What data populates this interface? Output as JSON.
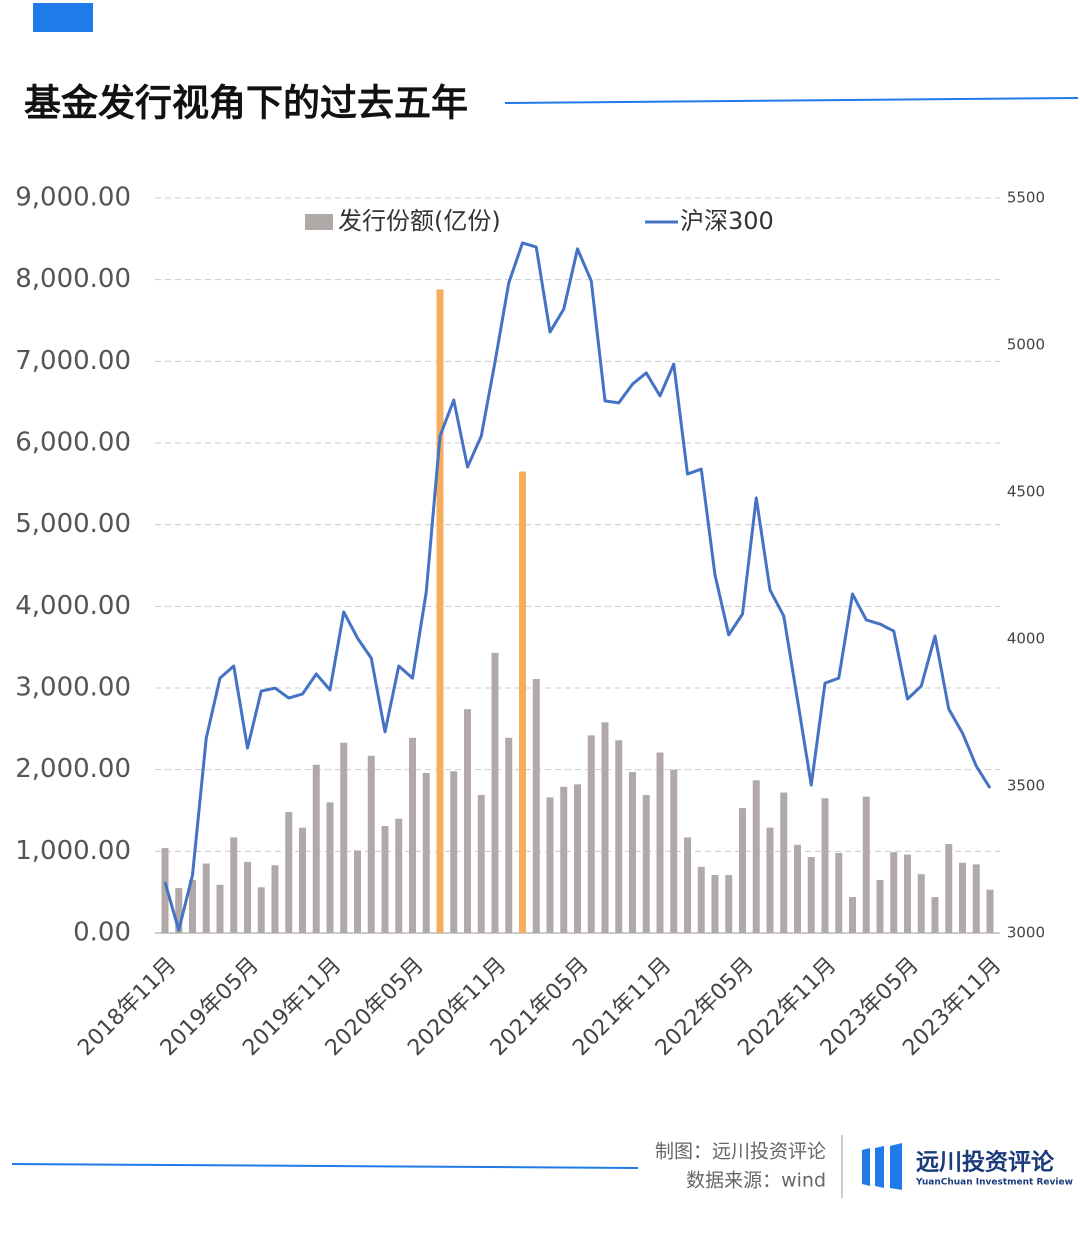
{
  "header": {
    "title": "基金发行视角下的过去五年"
  },
  "chart_data": {
    "type": "bar_line",
    "categories": [
      "2018年11月",
      null,
      null,
      null,
      null,
      null,
      "2019年05月",
      null,
      null,
      null,
      null,
      null,
      "2019年11月",
      null,
      null,
      null,
      null,
      null,
      "2020年05月",
      null,
      null,
      null,
      null,
      null,
      "2020年11月",
      null,
      null,
      null,
      null,
      null,
      "2021年05月",
      null,
      null,
      null,
      null,
      null,
      "2021年11月",
      null,
      null,
      null,
      null,
      null,
      "2022年05月",
      null,
      null,
      null,
      null,
      null,
      "2022年11月",
      null,
      null,
      null,
      null,
      null,
      "2023年05月",
      null,
      null,
      null,
      null,
      null,
      "2023年11月"
    ],
    "series": [
      {
        "name": "发行份额(亿份)",
        "type": "bar",
        "color": "#b0a9a8",
        "colors": [
          "#b0a9a8",
          "#b0a9a8",
          "#b0a9a8",
          "#b0a9a8",
          "#b0a9a8",
          "#b0a9a8",
          "#b0a9a8",
          "#b0a9a8",
          "#b0a9a8",
          "#b0a9a8",
          "#b0a9a8",
          "#b0a9a8",
          "#b0a9a8",
          "#b0a9a8",
          "#b0a9a8",
          "#b0a9a8",
          "#b0a9a8",
          "#b0a9a8",
          "#b0a9a8",
          "#b0a9a8",
          "#f4ae5e",
          "#b0a9a8",
          "#b0a9a8",
          "#b0a9a8",
          "#b0a9a8",
          "#b0a9a8",
          "#f4ae5e",
          "#b0a9a8",
          "#b0a9a8",
          "#b0a9a8",
          "#b0a9a8",
          "#b0a9a8",
          "#b0a9a8",
          "#b0a9a8",
          "#b0a9a8",
          "#b0a9a8",
          "#b0a9a8",
          "#b0a9a8",
          "#b0a9a8",
          "#b0a9a8",
          "#b0a9a8",
          "#b0a9a8",
          "#b0a9a8",
          "#b0a9a8",
          "#b0a9a8",
          "#b0a9a8",
          "#b0a9a8",
          "#b0a9a8",
          "#b0a9a8",
          "#b0a9a8",
          "#b0a9a8",
          "#b0a9a8",
          "#b0a9a8",
          "#b0a9a8",
          "#b0a9a8",
          "#b0a9a8",
          "#b0a9a8",
          "#b0a9a8",
          "#b0a9a8",
          "#b0a9a8",
          "#b0a9a8"
        ],
        "values": [
          1040,
          550,
          650,
          850,
          590,
          1170,
          870,
          560,
          830,
          1480,
          1290,
          2060,
          1600,
          2330,
          1010,
          2170,
          1310,
          1400,
          2390,
          1960,
          7880,
          1980,
          2740,
          1690,
          3430,
          2390,
          5650,
          3110,
          1660,
          1790,
          1820,
          2420,
          2580,
          2360,
          1970,
          1690,
          2210,
          2000,
          1170,
          810,
          710,
          710,
          1530,
          1870,
          1290,
          1720,
          1080,
          930,
          1650,
          980,
          440,
          1670,
          650,
          990,
          960,
          720,
          440,
          1090,
          860,
          840,
          530
        ]
      },
      {
        "name": "沪深300",
        "type": "line",
        "axis": "y2",
        "color": "#4472c4",
        "values": [
          3173,
          3010,
          3197,
          3663,
          3867,
          3908,
          3629,
          3823,
          3833,
          3799,
          3813,
          3881,
          3827,
          4092,
          4003,
          3935,
          3684,
          3908,
          3867,
          4160,
          4690,
          4813,
          4585,
          4690,
          4942,
          5211,
          5347,
          5333,
          5044,
          5122,
          5327,
          5218,
          4810,
          4803,
          4867,
          4905,
          4827,
          4935,
          4561,
          4578,
          4218,
          4014,
          4085,
          4480,
          4167,
          4078,
          3793,
          3503,
          3850,
          3867,
          4153,
          4065,
          4051,
          4027,
          3796,
          3840,
          4010,
          3762,
          3680,
          3568,
          3493
        ]
      }
    ],
    "ylim": [
      0,
      9000
    ],
    "yticks": [
      {
        "value": 0,
        "label": "0.00"
      },
      {
        "value": 1000,
        "label": "1,000.00"
      },
      {
        "value": 2000,
        "label": "2,000.00"
      },
      {
        "value": 3000,
        "label": "3,000.00"
      },
      {
        "value": 4000,
        "label": "4,000.00"
      },
      {
        "value": 5000,
        "label": "5,000.00"
      },
      {
        "value": 6000,
        "label": "6,000.00"
      },
      {
        "value": 7000,
        "label": "7,000.00"
      },
      {
        "value": 8000,
        "label": "8,000.00"
      },
      {
        "value": 9000,
        "label": "9,000.00"
      }
    ],
    "y2lim": [
      3000,
      5500
    ],
    "y2ticks": [
      3000,
      3500,
      4000,
      4500,
      5000,
      5500
    ],
    "grid": true
  },
  "footer": {
    "credit": "制图：远川投资评论",
    "source": "数据来源：wind",
    "brand": "远川投资评论",
    "brand_en": "YuanChuan Investment Review"
  }
}
